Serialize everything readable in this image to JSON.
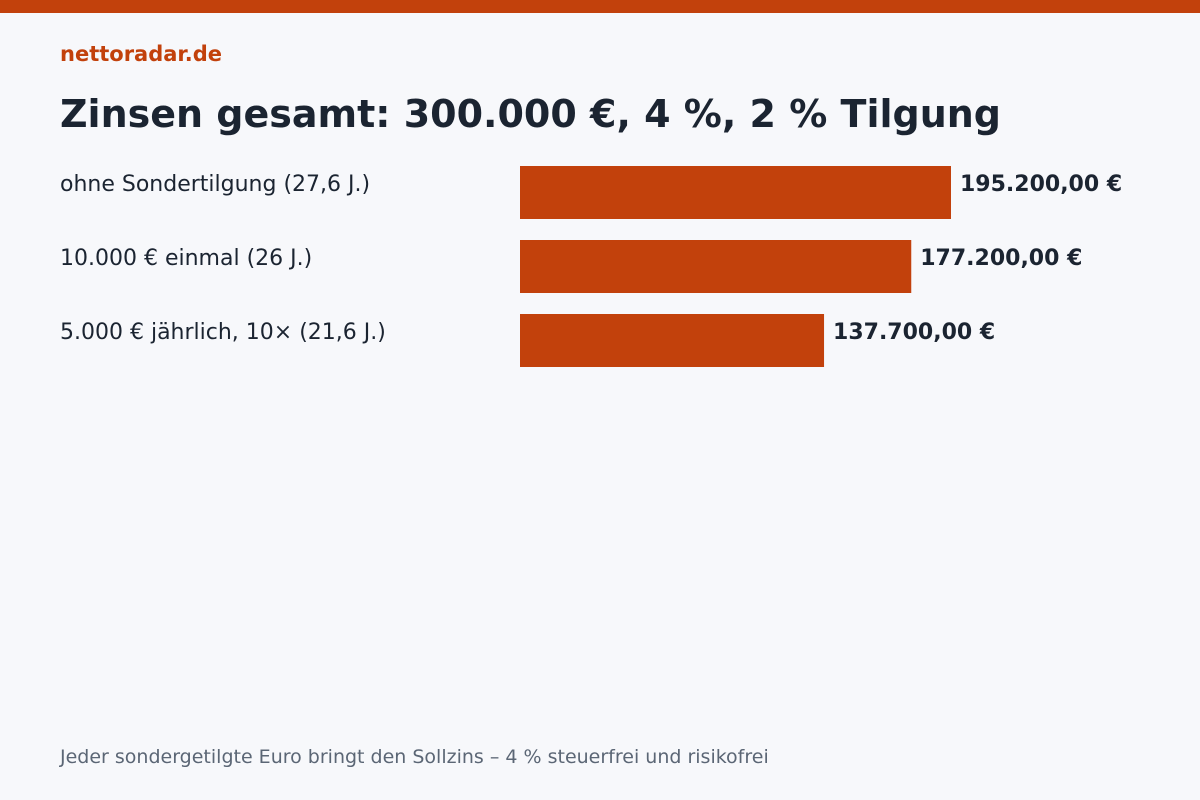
{
  "header": {
    "brand": "nettoradar.de"
  },
  "footer": {
    "note": "Jeder sondergetilgte Euro bringt den Sollzins – 4 % steuerfrei und risikofrei"
  },
  "colors": {
    "accent": "#c2410c",
    "text": "#1b2431",
    "muted": "#5b6675",
    "background": "#f7f8fb"
  },
  "chart_data": {
    "type": "bar",
    "orientation": "horizontal",
    "title": "Zinsen gesamt: 300.000 €, 4 %, 2 % Tilgung",
    "categories": [
      "ohne Sondertilgung (27,6 J.)",
      "10.000 € einmal (26 J.)",
      "5.000 € jährlich, 10× (21,6 J.)"
    ],
    "values": [
      195200,
      177200,
      137700
    ],
    "value_labels": [
      "195.200,00 €",
      "177.200,00 €",
      "137.700,00 €"
    ],
    "xlim": [
      0,
      195200
    ],
    "grid": false,
    "legend": "none",
    "bar_color": "#c2410c"
  }
}
